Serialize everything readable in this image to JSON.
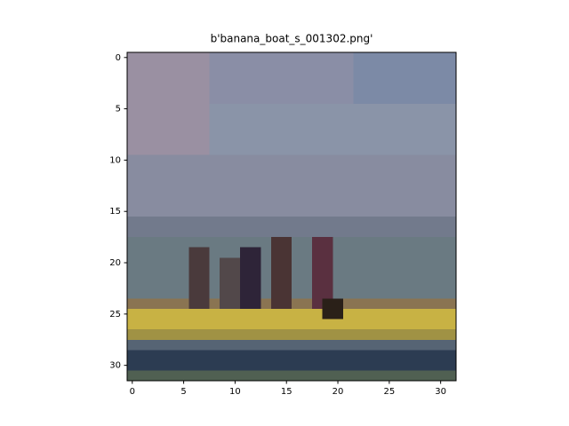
{
  "chart_data": {
    "type": "image",
    "title": "b'banana_boat_s_001302.png'",
    "xlim": [
      -0.5,
      31.5
    ],
    "ylim": [
      31.5,
      -0.5
    ],
    "xticks": [
      0,
      5,
      10,
      15,
      20,
      25,
      30
    ],
    "yticks": [
      0,
      5,
      10,
      15,
      20,
      25,
      30
    ]
  }
}
